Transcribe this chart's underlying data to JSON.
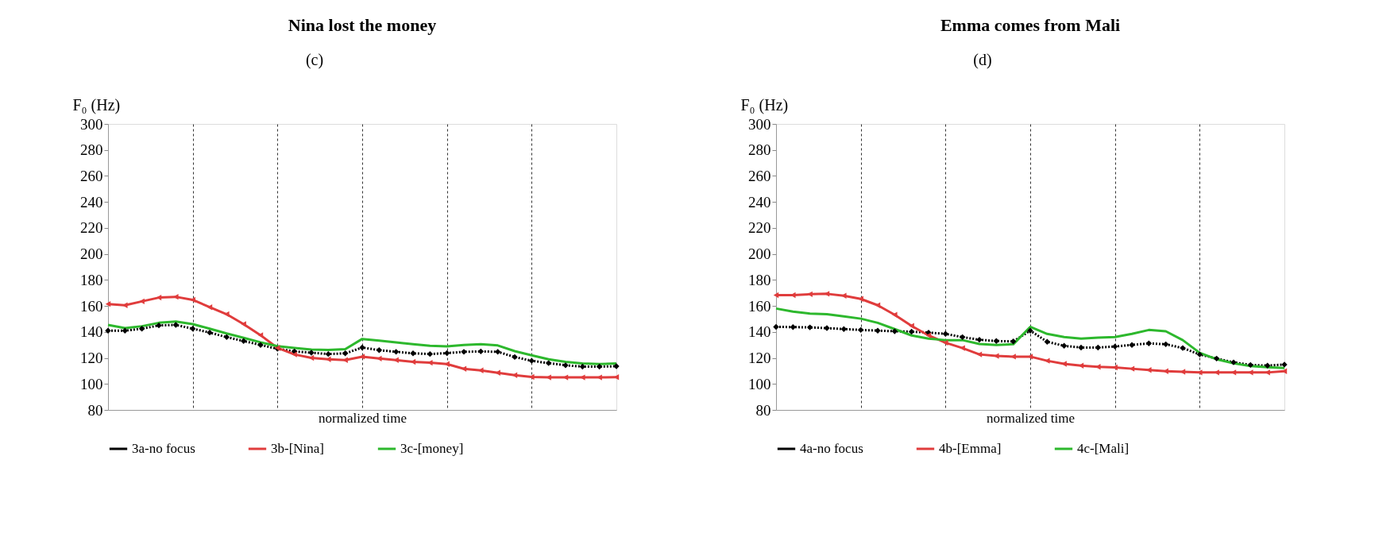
{
  "chart_data": [
    {
      "type": "line",
      "title": "Nina lost the money",
      "annotations": [
        "(c)"
      ],
      "ylabel": "F₀ (Hz)",
      "xlabel": "normalized time",
      "categories": [
        null,
        null,
        null,
        null,
        null,
        null,
        null,
        null,
        null,
        null,
        null,
        null,
        null,
        null,
        null,
        null,
        null,
        null,
        null,
        null,
        null,
        null,
        null,
        null,
        null,
        null,
        null,
        null,
        null,
        null,
        null
      ],
      "ylim": [
        80,
        300
      ],
      "yticks": [
        80,
        100,
        120,
        140,
        160,
        180,
        200,
        220,
        240,
        260,
        280,
        300
      ],
      "grid": "x",
      "legend": "bottom",
      "tick_labels": "y",
      "series": [
        {
          "name": "3a-no focus",
          "color": "#000000",
          "marker": "diamond",
          "line_style": "dotted",
          "values": [
            141,
            141,
            142.5,
            145,
            145.4,
            142.5,
            139.5,
            136,
            133,
            130,
            127,
            125,
            124,
            123,
            123.5,
            128,
            126,
            124.7,
            123.5,
            123,
            123.7,
            124.7,
            125,
            124.7,
            120.7,
            117.8,
            116,
            114.3,
            113.3,
            113.3,
            113.6
          ]
        },
        {
          "name": "3b-[Nina]",
          "color": "#e03c3c",
          "marker": "triangle",
          "line_style": "solid",
          "values": [
            161.5,
            160.5,
            163.5,
            166.4,
            167,
            164.7,
            159,
            153.6,
            146,
            137.5,
            127.7,
            122.7,
            120,
            119,
            118.3,
            121,
            119.5,
            118.3,
            117,
            116.3,
            115.3,
            111.6,
            110.4,
            108.6,
            106.7,
            105.4,
            105,
            105,
            105,
            105,
            105.2
          ]
        },
        {
          "name": "3c-[money]",
          "color": "#2db82d",
          "marker": "none",
          "line_style": "solid",
          "values": [
            145.4,
            143,
            144.4,
            147,
            148,
            146,
            142.5,
            138.8,
            135.5,
            132,
            129,
            127.7,
            126.4,
            126.2,
            126.7,
            134.6,
            133.3,
            131.9,
            130.6,
            129.4,
            128.9,
            130,
            130.6,
            129.6,
            125.2,
            122,
            119,
            117,
            115.8,
            115.3,
            115.8
          ]
        }
      ]
    },
    {
      "type": "line",
      "title": "Emma comes from Mali",
      "annotations": [
        "(d)"
      ],
      "ylabel": "F₀ (Hz)",
      "xlabel": "normalized time",
      "categories": [
        null,
        null,
        null,
        null,
        null,
        null,
        null,
        null,
        null,
        null,
        null,
        null,
        null,
        null,
        null,
        null,
        null,
        null,
        null,
        null,
        null,
        null,
        null,
        null,
        null,
        null,
        null,
        null,
        null,
        null,
        null
      ],
      "ylim": [
        80,
        300
      ],
      "yticks": [
        80,
        100,
        120,
        140,
        160,
        180,
        200,
        220,
        240,
        260,
        280,
        300
      ],
      "grid": "x",
      "legend": "bottom",
      "tick_labels": "y",
      "series": [
        {
          "name": "4a-no focus",
          "color": "#000000",
          "marker": "diamond",
          "line_style": "dotted",
          "values": [
            143.9,
            143.7,
            143.5,
            142.9,
            142.2,
            141.5,
            141,
            140.5,
            140.2,
            139.5,
            138.5,
            136,
            134,
            133,
            132.7,
            141,
            132.4,
            129.3,
            128,
            128,
            128.8,
            130,
            131.2,
            130.5,
            127.6,
            122.7,
            119.5,
            116.6,
            114.6,
            114.1,
            114.9
          ]
        },
        {
          "name": "4b-[Emma]",
          "color": "#e03c3c",
          "marker": "triangle",
          "line_style": "solid",
          "values": [
            168.3,
            168.3,
            169,
            169.3,
            167.8,
            165.4,
            160.5,
            153.2,
            144.6,
            137.3,
            131.7,
            127.6,
            122.7,
            121.5,
            121,
            121,
            117.8,
            115.4,
            114.1,
            113.2,
            112.7,
            111.7,
            110.7,
            109.8,
            109.3,
            108.8,
            108.8,
            108.8,
            108.8,
            108.8,
            109.8
          ]
        },
        {
          "name": "4c-[Mali]",
          "color": "#2db82d",
          "marker": "none",
          "line_style": "solid",
          "values": [
            158,
            155.6,
            154.1,
            153.7,
            152,
            150.2,
            147,
            142.2,
            137.3,
            134.9,
            133.7,
            133.7,
            130.7,
            130,
            130.5,
            143.9,
            138.5,
            136.1,
            134.9,
            135.6,
            136.1,
            138.5,
            141.5,
            140.5,
            133.7,
            123.9,
            119,
            115.9,
            113.7,
            112.9,
            112.2
          ]
        }
      ]
    }
  ]
}
